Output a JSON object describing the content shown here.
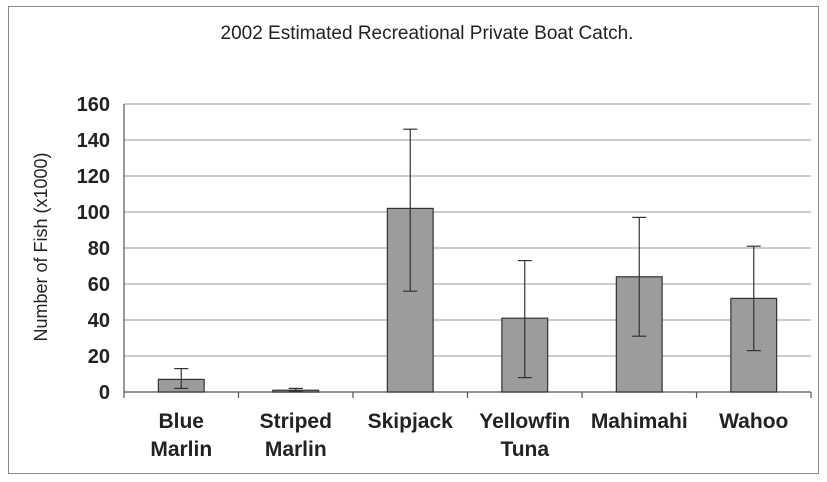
{
  "chart_data": {
    "type": "bar",
    "title": "2002 Estimated Recreational Private Boat Catch.",
    "ylabel": "Number of Fish (x1000)",
    "xlabel": "",
    "ylim": [
      0,
      160
    ],
    "yticks": [
      0,
      20,
      40,
      60,
      80,
      100,
      120,
      140,
      160
    ],
    "grid": true,
    "categories": [
      [
        "Blue",
        "Marlin"
      ],
      [
        "Striped",
        "Marlin"
      ],
      [
        "Skipjack"
      ],
      [
        "Yellowfin",
        "Tuna"
      ],
      [
        "Mahimahi"
      ],
      [
        "Wahoo"
      ]
    ],
    "values": [
      7,
      1,
      102,
      41,
      64,
      52
    ],
    "error_low": [
      2,
      0.5,
      56,
      8,
      31,
      23
    ],
    "error_high": [
      13,
      2,
      146,
      73,
      97,
      81
    ],
    "bar_color": "#9c9c9c"
  }
}
